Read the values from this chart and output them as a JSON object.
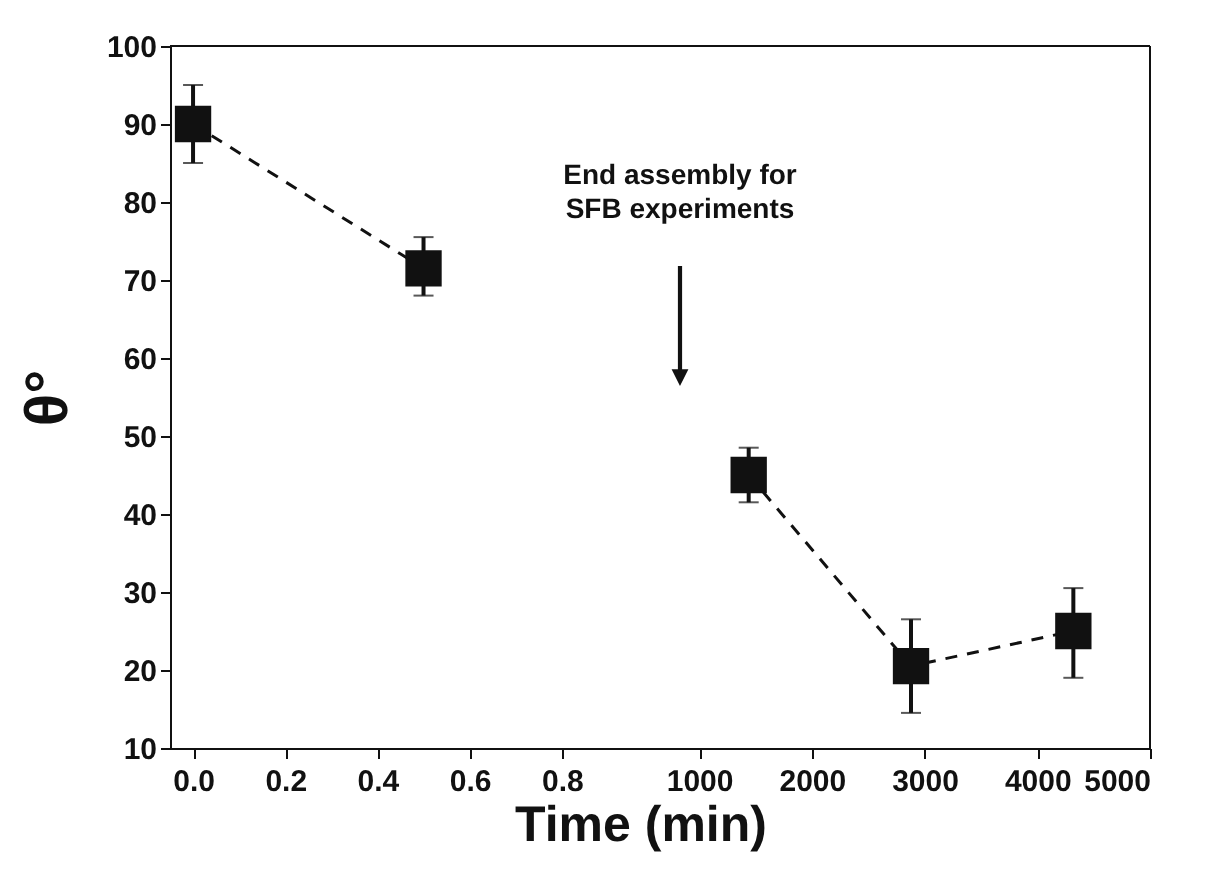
{
  "chart_data": [
    {
      "type": "line",
      "xlabel": "Time (min)",
      "ylabel": "θ°",
      "x": [
        0,
        0.5
      ],
      "series": [
        {
          "color": "#111111",
          "values": [
            90,
            71.5
          ],
          "errors": [
            [
              85,
              95
            ],
            [
              68,
              75.5
            ]
          ]
        }
      ],
      "marker": "square",
      "line_style": "dashed",
      "xlim": [
        -0.05,
        1.0
      ],
      "xticks": [
        {
          "value": 0,
          "label": "0.0"
        },
        0.2,
        0.4,
        0.6,
        0.8
      ],
      "ylim": [
        10,
        100
      ],
      "yticks": [
        10,
        20,
        30,
        40,
        50,
        60,
        70,
        80,
        90,
        100
      ]
    },
    {
      "type": "line",
      "x": [
        1440,
        2880,
        4320
      ],
      "series": [
        {
          "color": "#111111",
          "values": [
            45,
            20.5,
            25
          ],
          "errors": [
            [
              41.5,
              48.5
            ],
            [
              14.5,
              26.5
            ],
            [
              19,
              30.5
            ]
          ]
        }
      ],
      "marker": "square",
      "line_style": "dashed",
      "xlim": [
        600,
        5000
      ],
      "xticks": [
        1000,
        2000,
        3000,
        4000,
        5000
      ],
      "ylim": [
        10,
        100
      ],
      "tick_labels": "x",
      "annotations": [
        "End assembly for\nSFB experiments"
      ]
    }
  ]
}
